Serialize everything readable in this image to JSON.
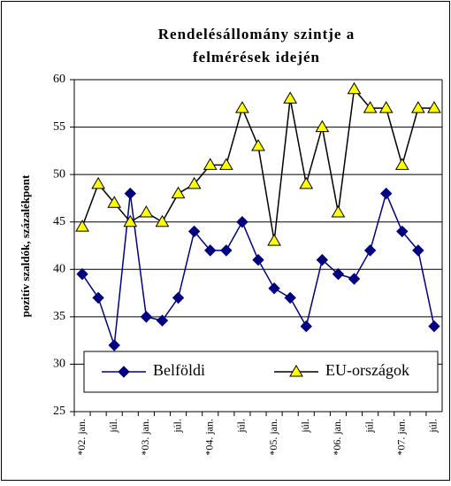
{
  "chart_data": {
    "type": "line",
    "title": [
      "Rendelésállomány szintje a",
      "felmérések idején"
    ],
    "y_label": "pozitív szaldók, százalékpont",
    "categories": [
      "*02. jan.",
      null,
      "júl.",
      null,
      "*03. jan.",
      null,
      "júl.",
      null,
      "*04. jan.",
      null,
      "júl.",
      null,
      "*05. jan.",
      null,
      "júl.",
      null,
      "*06. jan.",
      null,
      "júl.",
      null,
      "*07. jan.",
      null,
      "júl."
    ],
    "series": [
      {
        "name": "Belföldi",
        "color": "#000080",
        "marker": "diamond",
        "marker_fill": "#000080",
        "values": [
          39.5,
          37,
          32,
          48,
          35,
          34.6,
          37,
          44,
          42,
          42,
          45,
          41,
          38,
          37,
          34,
          41,
          39.5,
          39,
          42,
          48,
          44,
          42,
          34
        ]
      },
      {
        "name": "EU-országok",
        "color": "#000000",
        "marker": "triangle",
        "marker_fill": "#ffff00",
        "values": [
          44.5,
          49,
          47,
          45,
          46,
          45,
          48,
          49,
          51,
          51,
          57,
          53,
          43,
          58,
          49,
          55,
          46,
          59,
          57,
          57,
          51,
          57,
          57
        ]
      }
    ],
    "ylim": [
      25,
      60
    ],
    "yticks": [
      25,
      30,
      35,
      40,
      45,
      50,
      55,
      60
    ],
    "grid": true,
    "legend": "bottom"
  }
}
